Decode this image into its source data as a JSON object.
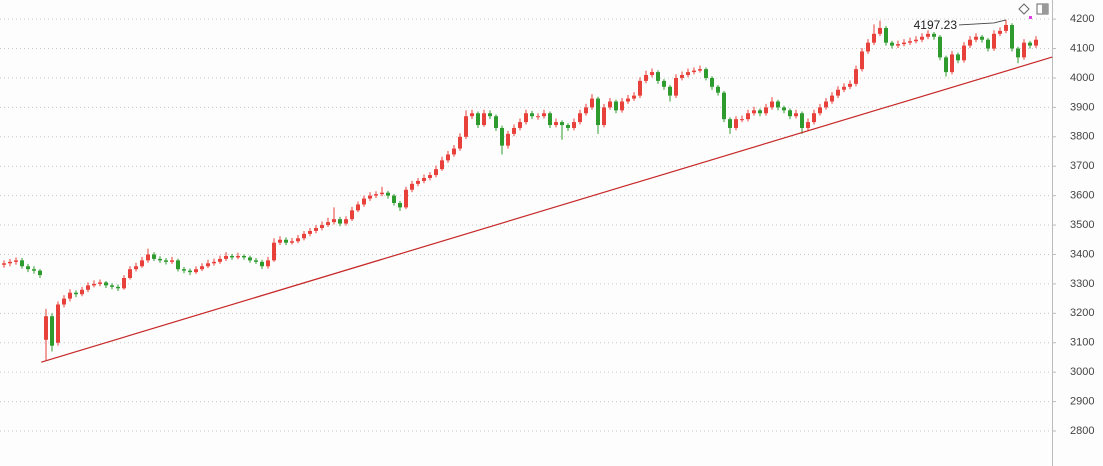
{
  "chart_data": {
    "type": "candlestick",
    "ylim": [
      2681,
      4265
    ],
    "yticks": [
      2800,
      2900,
      3000,
      3100,
      3200,
      3300,
      3400,
      3500,
      3600,
      3700,
      3800,
      3900,
      4000,
      4100,
      4200
    ],
    "grid": true,
    "up_color": "#e8413c",
    "down_color": "#2e9b2e",
    "candles": [
      [
        3365,
        3380,
        3355,
        3370
      ],
      [
        3370,
        3385,
        3360,
        3375
      ],
      [
        3375,
        3390,
        3365,
        3380
      ],
      [
        3380,
        3388,
        3352,
        3360
      ],
      [
        3360,
        3368,
        3340,
        3350
      ],
      [
        3350,
        3360,
        3335,
        3345
      ],
      [
        3345,
        3350,
        3320,
        3330
      ],
      [
        3110,
        3215,
        3040,
        3190
      ],
      [
        3190,
        3200,
        3070,
        3090
      ],
      [
        3100,
        3240,
        3090,
        3230
      ],
      [
        3230,
        3262,
        3220,
        3250
      ],
      [
        3250,
        3282,
        3240,
        3270
      ],
      [
        3270,
        3278,
        3255,
        3265
      ],
      [
        3265,
        3290,
        3258,
        3280
      ],
      [
        3280,
        3305,
        3272,
        3295
      ],
      [
        3295,
        3312,
        3288,
        3300
      ],
      [
        3300,
        3315,
        3292,
        3305
      ],
      [
        3305,
        3310,
        3286,
        3295
      ],
      [
        3295,
        3302,
        3282,
        3290
      ],
      [
        3290,
        3298,
        3276,
        3285
      ],
      [
        3285,
        3330,
        3280,
        3320
      ],
      [
        3320,
        3360,
        3315,
        3350
      ],
      [
        3350,
        3372,
        3342,
        3360
      ],
      [
        3360,
        3392,
        3355,
        3380
      ],
      [
        3380,
        3420,
        3372,
        3400
      ],
      [
        3400,
        3408,
        3378,
        3385
      ],
      [
        3385,
        3394,
        3372,
        3380
      ],
      [
        3380,
        3388,
        3366,
        3375
      ],
      [
        3375,
        3392,
        3368,
        3380
      ],
      [
        3380,
        3386,
        3342,
        3350
      ],
      [
        3350,
        3358,
        3336,
        3345
      ],
      [
        3345,
        3352,
        3330,
        3340
      ],
      [
        3340,
        3360,
        3334,
        3350
      ],
      [
        3350,
        3370,
        3344,
        3360
      ],
      [
        3360,
        3382,
        3354,
        3370
      ],
      [
        3370,
        3386,
        3362,
        3375
      ],
      [
        3375,
        3396,
        3368,
        3385
      ],
      [
        3385,
        3408,
        3378,
        3395
      ],
      [
        3395,
        3402,
        3382,
        3390
      ],
      [
        3390,
        3406,
        3384,
        3395
      ],
      [
        3395,
        3400,
        3382,
        3390
      ],
      [
        3390,
        3396,
        3372,
        3380
      ],
      [
        3380,
        3388,
        3368,
        3375
      ],
      [
        3375,
        3382,
        3350,
        3360
      ],
      [
        3360,
        3392,
        3352,
        3380
      ],
      [
        3380,
        3455,
        3375,
        3440
      ],
      [
        3440,
        3462,
        3432,
        3450
      ],
      [
        3450,
        3458,
        3432,
        3440
      ],
      [
        3440,
        3456,
        3434,
        3445
      ],
      [
        3445,
        3466,
        3438,
        3455
      ],
      [
        3455,
        3480,
        3448,
        3470
      ],
      [
        3470,
        3490,
        3462,
        3480
      ],
      [
        3480,
        3500,
        3472,
        3490
      ],
      [
        3490,
        3512,
        3482,
        3500
      ],
      [
        3500,
        3525,
        3494,
        3510
      ],
      [
        3510,
        3560,
        3502,
        3520
      ],
      [
        3520,
        3528,
        3496,
        3505
      ],
      [
        3505,
        3530,
        3498,
        3520
      ],
      [
        3520,
        3562,
        3514,
        3550
      ],
      [
        3550,
        3580,
        3544,
        3570
      ],
      [
        3570,
        3600,
        3562,
        3590
      ],
      [
        3590,
        3612,
        3582,
        3600
      ],
      [
        3600,
        3615,
        3592,
        3605
      ],
      [
        3605,
        3630,
        3598,
        3610
      ],
      [
        3610,
        3616,
        3590,
        3600
      ],
      [
        3600,
        3606,
        3566,
        3575
      ],
      [
        3575,
        3582,
        3548,
        3560
      ],
      [
        3560,
        3630,
        3554,
        3620
      ],
      [
        3620,
        3650,
        3612,
        3640
      ],
      [
        3640,
        3660,
        3632,
        3650
      ],
      [
        3650,
        3672,
        3642,
        3660
      ],
      [
        3660,
        3680,
        3652,
        3670
      ],
      [
        3670,
        3702,
        3662,
        3690
      ],
      [
        3690,
        3732,
        3684,
        3720
      ],
      [
        3720,
        3752,
        3712,
        3740
      ],
      [
        3740,
        3772,
        3732,
        3760
      ],
      [
        3760,
        3812,
        3752,
        3800
      ],
      [
        3800,
        3890,
        3792,
        3870
      ],
      [
        3870,
        3892,
        3860,
        3880
      ],
      [
        3880,
        3886,
        3830,
        3840
      ],
      [
        3840,
        3892,
        3834,
        3880
      ],
      [
        3880,
        3890,
        3860,
        3870
      ],
      [
        3870,
        3876,
        3820,
        3830
      ],
      [
        3830,
        3838,
        3740,
        3770
      ],
      [
        3770,
        3820,
        3760,
        3810
      ],
      [
        3810,
        3842,
        3802,
        3830
      ],
      [
        3830,
        3862,
        3822,
        3850
      ],
      [
        3850,
        3892,
        3842,
        3880
      ],
      [
        3880,
        3888,
        3860,
        3870
      ],
      [
        3870,
        3880,
        3858,
        3870
      ],
      [
        3870,
        3892,
        3862,
        3880
      ],
      [
        3880,
        3886,
        3830,
        3840
      ],
      [
        3840,
        3862,
        3832,
        3850
      ],
      [
        3850,
        3856,
        3790,
        3840
      ],
      [
        3840,
        3846,
        3820,
        3830
      ],
      [
        3830,
        3862,
        3822,
        3850
      ],
      [
        3850,
        3892,
        3842,
        3880
      ],
      [
        3880,
        3912,
        3872,
        3900
      ],
      [
        3900,
        3945,
        3892,
        3930
      ],
      [
        3930,
        3936,
        3810,
        3840
      ],
      [
        3840,
        3912,
        3832,
        3900
      ],
      [
        3900,
        3932,
        3892,
        3920
      ],
      [
        3920,
        3926,
        3880,
        3890
      ],
      [
        3890,
        3932,
        3882,
        3920
      ],
      [
        3920,
        3942,
        3912,
        3930
      ],
      [
        3930,
        3952,
        3922,
        3940
      ],
      [
        3940,
        4002,
        3932,
        3990
      ],
      [
        3990,
        4025,
        3982,
        4010
      ],
      [
        4010,
        4032,
        4002,
        4020
      ],
      [
        4020,
        4026,
        3980,
        3990
      ],
      [
        3990,
        3996,
        3960,
        3970
      ],
      [
        3970,
        3976,
        3920,
        3940
      ],
      [
        3940,
        4012,
        3932,
        4000
      ],
      [
        4000,
        4022,
        3992,
        4010
      ],
      [
        4010,
        4032,
        4002,
        4020
      ],
      [
        4020,
        4036,
        4012,
        4025
      ],
      [
        4025,
        4042,
        4018,
        4030
      ],
      [
        4030,
        4036,
        3992,
        4000
      ],
      [
        4000,
        4006,
        3960,
        3970
      ],
      [
        3970,
        3976,
        3940,
        3950
      ],
      [
        3950,
        3956,
        3850,
        3860
      ],
      [
        3860,
        3866,
        3810,
        3830
      ],
      [
        3830,
        3870,
        3822,
        3860
      ],
      [
        3860,
        3872,
        3850,
        3860
      ],
      [
        3860,
        3892,
        3852,
        3880
      ],
      [
        3880,
        3902,
        3872,
        3890
      ],
      [
        3890,
        3896,
        3870,
        3880
      ],
      [
        3880,
        3912,
        3872,
        3900
      ],
      [
        3900,
        3935,
        3892,
        3920
      ],
      [
        3920,
        3926,
        3890,
        3900
      ],
      [
        3900,
        3906,
        3880,
        3890
      ],
      [
        3890,
        3896,
        3860,
        3870
      ],
      [
        3870,
        3892,
        3862,
        3880
      ],
      [
        3880,
        3886,
        3810,
        3830
      ],
      [
        3830,
        3862,
        3820,
        3850
      ],
      [
        3850,
        3892,
        3842,
        3880
      ],
      [
        3880,
        3912,
        3872,
        3900
      ],
      [
        3900,
        3932,
        3892,
        3920
      ],
      [
        3920,
        3952,
        3912,
        3940
      ],
      [
        3940,
        3972,
        3932,
        3960
      ],
      [
        3960,
        3982,
        3952,
        3970
      ],
      [
        3970,
        3992,
        3962,
        3980
      ],
      [
        3980,
        4042,
        3972,
        4030
      ],
      [
        4030,
        4102,
        4022,
        4090
      ],
      [
        4090,
        4132,
        4082,
        4120
      ],
      [
        4120,
        4182,
        4112,
        4150
      ],
      [
        4150,
        4195,
        4142,
        4170
      ],
      [
        4170,
        4176,
        4110,
        4120
      ],
      [
        4120,
        4126,
        4100,
        4110
      ],
      [
        4110,
        4127,
        4102,
        4115
      ],
      [
        4115,
        4132,
        4108,
        4120
      ],
      [
        4120,
        4137,
        4112,
        4125
      ],
      [
        4125,
        4142,
        4118,
        4130
      ],
      [
        4130,
        4152,
        4122,
        4140
      ],
      [
        4140,
        4162,
        4132,
        4150
      ],
      [
        4150,
        4156,
        4130,
        4140
      ],
      [
        4140,
        4146,
        4060,
        4070
      ],
      [
        4070,
        4076,
        4005,
        4020
      ],
      [
        4020,
        4092,
        4012,
        4080
      ],
      [
        4080,
        4086,
        4050,
        4060
      ],
      [
        4060,
        4122,
        4052,
        4110
      ],
      [
        4110,
        4142,
        4102,
        4130
      ],
      [
        4130,
        4152,
        4122,
        4140
      ],
      [
        4140,
        4146,
        4120,
        4130
      ],
      [
        4130,
        4136,
        4090,
        4100
      ],
      [
        4100,
        4162,
        4092,
        4150
      ],
      [
        4150,
        4172,
        4142,
        4160
      ],
      [
        4160,
        4197.23,
        4152,
        4180
      ],
      [
        4180,
        4186,
        4090,
        4100
      ],
      [
        4100,
        4106,
        4050,
        4070
      ],
      [
        4070,
        4132,
        4062,
        4120
      ],
      [
        4120,
        4126,
        4100,
        4110
      ],
      [
        4110,
        4142,
        4102,
        4130
      ]
    ],
    "trendline": {
      "x": [
        6.2,
        174.7
      ],
      "values": [
        3034,
        4071
      ],
      "color": "#c62828"
    },
    "annotation": {
      "label": "4197.23",
      "value": 4197.23
    }
  }
}
